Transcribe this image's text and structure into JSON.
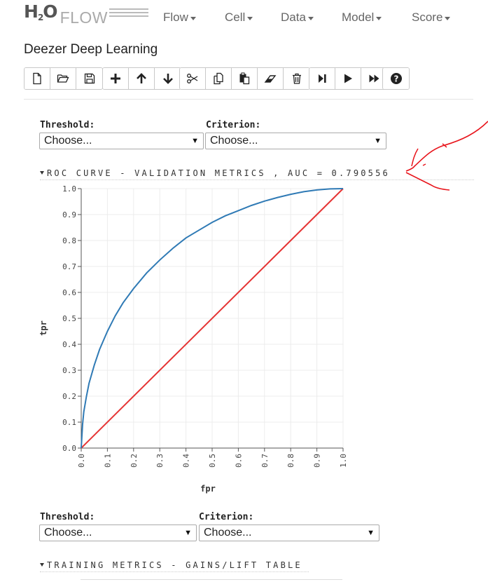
{
  "app": {
    "logo_text": "H2O",
    "logo_sub": "2",
    "logo_flow": "FLOW",
    "menus": [
      "Flow",
      "Cell",
      "Data",
      "Model",
      "Score"
    ]
  },
  "notebook": {
    "title": "Deezer Deep Learning"
  },
  "toolbar": {
    "groups": [
      [
        "new-file-icon",
        "open-folder-icon",
        "save-icon"
      ],
      [
        "plus-icon",
        "arrow-up-icon",
        "arrow-down-icon"
      ],
      [
        "scissors-icon",
        "copy-icon",
        "paste-icon",
        "eraser-icon",
        "trash-icon"
      ],
      [
        "step-forward-icon",
        "play-icon",
        "fast-forward-icon"
      ],
      [
        "help-icon"
      ]
    ]
  },
  "validation_controls": {
    "threshold_label": "Threshold:",
    "threshold_value": "Choose...",
    "criterion_label": "Criterion:",
    "criterion_value": "Choose..."
  },
  "roc_section": {
    "heading": "ROC CURVE - VALIDATION METRICS , AUC = 0.790556"
  },
  "training_controls": {
    "threshold_label": "Threshold:",
    "threshold_value": "Choose...",
    "criterion_label": "Criterion:",
    "criterion_value": "Choose..."
  },
  "gains_section": {
    "heading": "TRAINING METRICS - GAINS/LIFT TABLE"
  },
  "chart_data": {
    "type": "line",
    "xlabel": "fpr",
    "ylabel": "tpr",
    "xlim": [
      0,
      1
    ],
    "ylim": [
      0,
      1
    ],
    "grid": true,
    "x_ticks": [
      "0.0",
      "0.1",
      "0.2",
      "0.3",
      "0.4",
      "0.5",
      "0.6",
      "0.7",
      "0.8",
      "0.9",
      "1.0"
    ],
    "y_ticks": [
      "0.0",
      "0.1",
      "0.2",
      "0.3",
      "0.4",
      "0.5",
      "0.6",
      "0.7",
      "0.8",
      "0.9",
      "1.0"
    ],
    "series": [
      {
        "color": "#2f7ab5",
        "x": [
          0,
          0.005,
          0.01,
          0.02,
          0.03,
          0.05,
          0.07,
          0.1,
          0.13,
          0.16,
          0.2,
          0.25,
          0.3,
          0.35,
          0.4,
          0.45,
          0.5,
          0.55,
          0.6,
          0.65,
          0.7,
          0.75,
          0.8,
          0.85,
          0.9,
          0.95,
          1.0
        ],
        "y": [
          0,
          0.09,
          0.14,
          0.2,
          0.25,
          0.32,
          0.38,
          0.45,
          0.51,
          0.56,
          0.615,
          0.675,
          0.725,
          0.77,
          0.81,
          0.84,
          0.87,
          0.895,
          0.915,
          0.935,
          0.952,
          0.966,
          0.978,
          0.988,
          0.995,
          0.999,
          1.0
        ]
      },
      {
        "color": "#e53333",
        "x": [
          0,
          1
        ],
        "y": [
          0,
          1
        ]
      }
    ]
  }
}
